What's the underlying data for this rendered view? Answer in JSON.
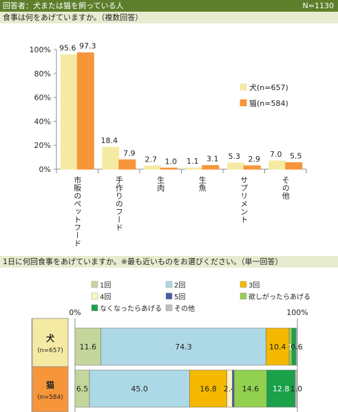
{
  "header": {
    "title": "回答者：犬または猫を飼っている人",
    "count": "N=1130"
  },
  "questions": {
    "q1": "食事は何をあげていますか。（複数回答）",
    "q2": "1日に何回食事をあげていますか。※最も近いものをお選びください。（単一回答）"
  },
  "chart_data": [
    {
      "type": "bar",
      "categories": [
        "市販のペットフード",
        "手作りのフード",
        "生肉",
        "生魚",
        "サプリメント",
        "その他"
      ],
      "series": [
        {
          "name": "犬(n=657)",
          "values": [
            95.6,
            18.4,
            2.7,
            1.1,
            5.3,
            7.0
          ],
          "labels": [
            "95.6",
            "18.4",
            "2.7",
            "1.1",
            "5.3",
            "7.0"
          ],
          "color": "#f5eaa3"
        },
        {
          "name": "猫(n=584)",
          "values": [
            97.3,
            7.9,
            1.0,
            3.1,
            2.9,
            5.5
          ],
          "labels": [
            "97.3",
            "7.9",
            "1.0",
            "3.1",
            "2.9",
            "5.5"
          ],
          "color": "#f7953a"
        }
      ],
      "yticks": [
        "0%",
        "20%",
        "40%",
        "60%",
        "80%",
        "100%"
      ],
      "ylim": [
        0,
        100
      ],
      "legend": "right",
      "grid": false
    },
    {
      "type": "bar",
      "orientation": "horizontal",
      "stacked": true,
      "axis_labels": [
        "0%",
        "100%"
      ],
      "xlim": [
        0,
        100
      ],
      "legend": "top",
      "segments": [
        {
          "name": "1回",
          "color": "#c4d69b"
        },
        {
          "name": "2回",
          "color": "#add8e6"
        },
        {
          "name": "3回",
          "color": "#f5b800"
        },
        {
          "name": "4回",
          "color": "#fff6c2"
        },
        {
          "name": "5回",
          "color": "#4d5ba0"
        },
        {
          "name": "欲しがったらあげる",
          "color": "#92d050"
        },
        {
          "name": "なくなったらあげる",
          "color": "#1aa14a"
        },
        {
          "name": "その他",
          "color": "#bfbfbf"
        }
      ],
      "rows": [
        {
          "label": "犬",
          "n": "(n=657)",
          "label_color": "#f5eaa3",
          "values": [
            11.6,
            74.3,
            10.4,
            0.0,
            0.0,
            1.2,
            1.9,
            0.6
          ],
          "labels": [
            "11.6",
            "74.3",
            "10.4",
            "",
            "",
            "",
            "1.9",
            "0.6"
          ]
        },
        {
          "label": "猫",
          "n": "(n=584)",
          "label_color": "#f7953a",
          "values": [
            6.5,
            45.0,
            16.8,
            2.4,
            0.9,
            14.6,
            12.8,
            1.0
          ],
          "labels": [
            "6.5",
            "45.0",
            "16.8",
            "2.4",
            "",
            "14.6",
            "12.8",
            "1.0"
          ]
        }
      ]
    }
  ]
}
